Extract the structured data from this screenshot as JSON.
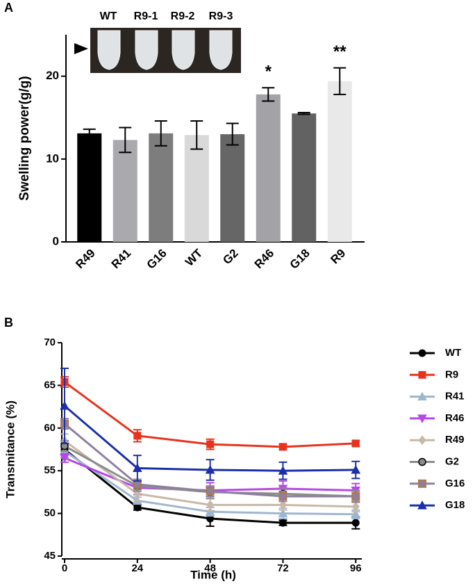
{
  "chart_data": [
    {
      "type": "bar",
      "panel": "A",
      "ylabel": "Swelling power(g/g)",
      "categories": [
        "R49",
        "R41",
        "G16",
        "WT",
        "G2",
        "R46",
        "G18",
        "R9"
      ],
      "values": [
        13.1,
        12.3,
        13.1,
        12.9,
        13.0,
        17.8,
        15.5,
        19.4
      ],
      "errors": [
        0.5,
        1.5,
        1.5,
        1.7,
        1.3,
        0.8,
        0.1,
        1.6
      ],
      "colors": [
        "#000000",
        "#a9a9ae",
        "#7d7d7d",
        "#d9d9d9",
        "#666666",
        "#a2a2a7",
        "#626262",
        "#e9e9e9"
      ],
      "ylim": [
        0,
        25
      ],
      "yticks": [
        0,
        10,
        20
      ],
      "annotations": [
        {
          "text": "*",
          "category": "R46"
        },
        {
          "text": "**",
          "category": "R9"
        }
      ],
      "inset_labels": [
        "WT",
        "R9-1",
        "R9-2",
        "R9-3"
      ]
    },
    {
      "type": "line",
      "panel": "B",
      "xlabel": "Time (h)",
      "ylabel": "Transmitance (%)",
      "x": [
        0,
        24,
        48,
        72,
        96
      ],
      "xlim": [
        0,
        98
      ],
      "xticks": [
        0,
        24,
        48,
        72,
        96
      ],
      "ylim": [
        45,
        70
      ],
      "yticks": [
        45,
        50,
        55,
        60,
        65,
        70
      ],
      "series": [
        {
          "name": "WT",
          "color": "#000000",
          "marker": "circle",
          "values": [
            57.5,
            50.7,
            49.4,
            48.9,
            48.9
          ],
          "errors": [
            1.0,
            0.3,
            0.9,
            0.3,
            0.7
          ]
        },
        {
          "name": "R9",
          "color": "#e8321e",
          "marker": "square",
          "values": [
            65.4,
            59.1,
            58.1,
            57.8,
            58.2
          ],
          "errors": [
            0.6,
            0.7,
            0.6,
            0.3,
            0.3
          ]
        },
        {
          "name": "R41",
          "color": "#9fb6cf",
          "marker": "triangle-up",
          "values": [
            57.3,
            51.5,
            50.2,
            50.0,
            49.9
          ],
          "errors": [
            0.8,
            0.4,
            0.5,
            0.6,
            0.5
          ]
        },
        {
          "name": "R46",
          "color": "#b648e8",
          "marker": "triangle-down",
          "values": [
            56.5,
            53.0,
            52.7,
            52.9,
            52.7
          ],
          "errors": [
            0.5,
            0.8,
            0.9,
            0.9,
            0.8
          ]
        },
        {
          "name": "R49",
          "color": "#c8b8a8",
          "marker": "diamond",
          "values": [
            58.5,
            52.3,
            51.0,
            51.0,
            50.8
          ],
          "errors": [
            0.8,
            0.8,
            0.7,
            0.6,
            0.6
          ]
        },
        {
          "name": "G2",
          "color": "#8c8c8c",
          "marker": "circle",
          "values": [
            57.9,
            53.2,
            52.5,
            52.3,
            52.0
          ],
          "errors": [
            0.6,
            0.6,
            0.7,
            0.7,
            0.7
          ]
        },
        {
          "name": "G16",
          "color": "#8c7fa0",
          "marker": "square",
          "marker_edge": "#b0784a",
          "values": [
            60.5,
            53.4,
            52.6,
            52.0,
            52.0
          ],
          "errors": [
            0.6,
            0.6,
            0.6,
            0.6,
            0.6
          ]
        },
        {
          "name": "G18",
          "color": "#1c2fa8",
          "marker": "triangle-up",
          "values": [
            62.6,
            55.3,
            55.1,
            55.0,
            55.1
          ],
          "errors": [
            4.4,
            1.5,
            1.2,
            1.0,
            1.0
          ]
        }
      ]
    }
  ]
}
